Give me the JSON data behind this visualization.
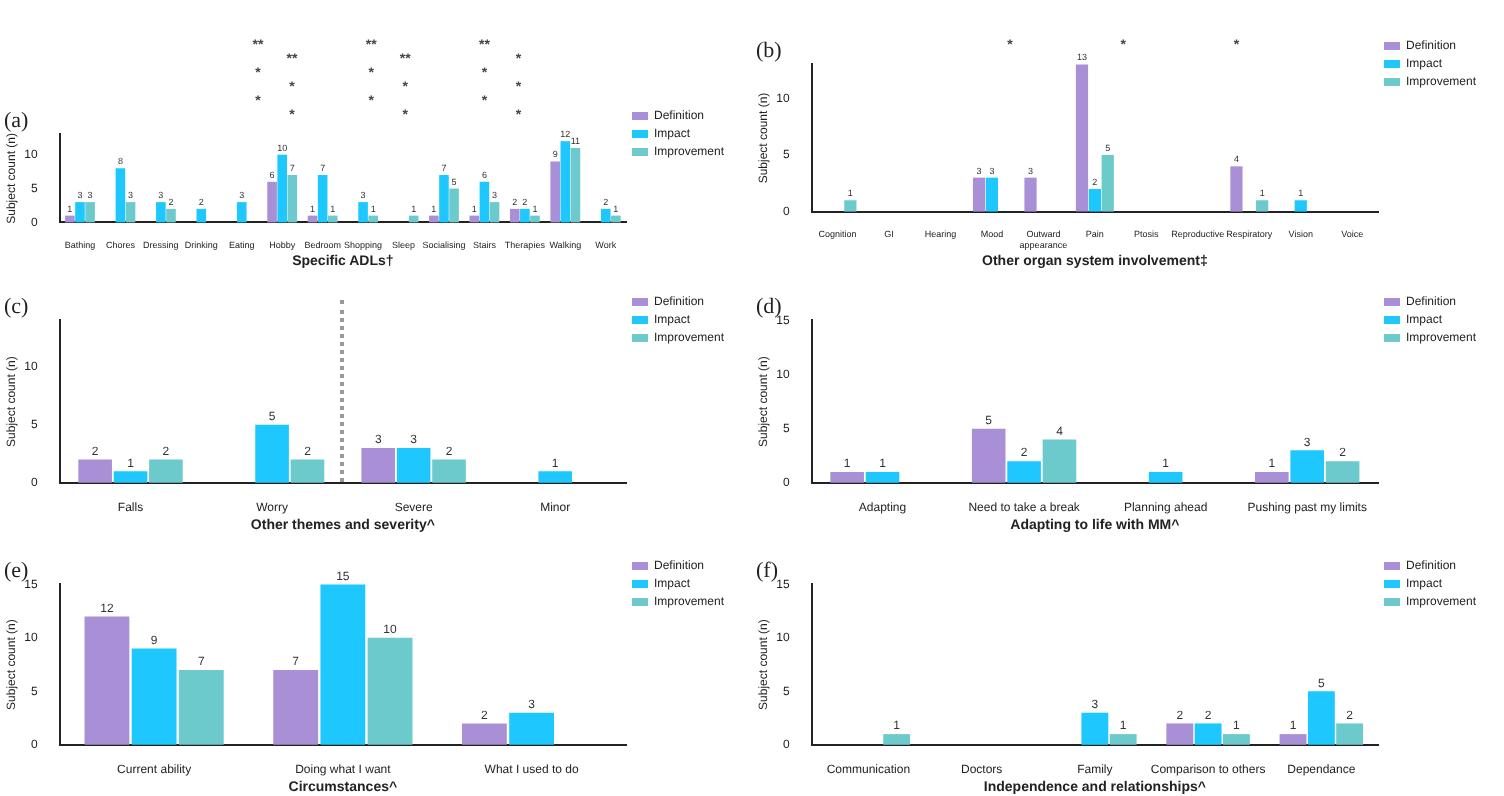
{
  "chart_data": [
    {
      "type": "bar",
      "title": "(a)",
      "xlabel": "Specific ADLs†",
      "ylabel": "Subject count (n)",
      "categories": [
        "Bathing",
        "Chores",
        "Dressing",
        "Drinking",
        "Eating",
        "Hobby",
        "Bedroom",
        "Shopping",
        "Sleep",
        "Socialising",
        "Stairs",
        "Therapies",
        "Walking",
        "Work"
      ],
      "series": [
        {
          "name": "Definition",
          "color": "#a98fd6",
          "values": [
            1,
            null,
            null,
            null,
            null,
            6,
            1,
            null,
            null,
            1,
            1,
            2,
            9,
            null
          ]
        },
        {
          "name": "Impact",
          "color": "#1ec8ff",
          "values": [
            3,
            8,
            3,
            2,
            3,
            10,
            7,
            3,
            null,
            7,
            6,
            2,
            12,
            2
          ]
        },
        {
          "name": "Improvement",
          "color": "#6cc9cc",
          "values": [
            3,
            3,
            2,
            null,
            null,
            7,
            1,
            1,
            1,
            5,
            3,
            1,
            11,
            1
          ]
        }
      ],
      "ylim": [
        0,
        13
      ],
      "yticks": [
        0,
        5,
        10
      ],
      "grid": false,
      "legend": "top right",
      "data_labels": true,
      "annotations": [
        "**",
        "**",
        "**",
        "**",
        "**",
        "*",
        "*",
        "*",
        "*",
        "*",
        "*",
        "*",
        "*",
        "*",
        "*",
        "*",
        "*",
        "*"
      ]
    },
    {
      "type": "bar",
      "title": "(b)",
      "xlabel": "Other organ system involvement‡",
      "ylabel": "Subject count (n)",
      "categories": [
        "Cognition",
        "GI",
        "Hearing",
        "Mood",
        "Outward appearance",
        "Pain",
        "Ptosis",
        "Reproductive",
        "Respiratory",
        "Vision",
        "Voice"
      ],
      "series": [
        {
          "name": "Definition",
          "color": "#a98fd6",
          "values": [
            null,
            null,
            null,
            3,
            3,
            13,
            null,
            null,
            4,
            null,
            null
          ]
        },
        {
          "name": "Impact",
          "color": "#1ec8ff",
          "values": [
            null,
            null,
            null,
            3,
            null,
            2,
            null,
            null,
            null,
            1,
            null
          ]
        },
        {
          "name": "Improvement",
          "color": "#6cc9cc",
          "values": [
            1,
            null,
            null,
            null,
            null,
            5,
            null,
            null,
            1,
            null,
            null
          ]
        }
      ],
      "ylim": [
        0,
        13
      ],
      "yticks": [
        0,
        5,
        10
      ],
      "grid": false,
      "legend": "top right",
      "data_labels": true,
      "annotations": [
        "*",
        "*",
        "*"
      ]
    },
    {
      "type": "bar",
      "title": "(c)",
      "xlabel": "Other themes and severity^",
      "ylabel": "Subject count (n)",
      "categories": [
        "Falls",
        "Worry",
        "Severe",
        "Minor"
      ],
      "series": [
        {
          "name": "Definition",
          "color": "#a98fd6",
          "values": [
            2,
            null,
            3,
            null
          ]
        },
        {
          "name": "Impact",
          "color": "#1ec8ff",
          "values": [
            1,
            5,
            3,
            1
          ]
        },
        {
          "name": "Improvement",
          "color": "#6cc9cc",
          "values": [
            2,
            2,
            2,
            null
          ]
        }
      ],
      "ylim": [
        0,
        14
      ],
      "yticks": [
        0,
        5,
        10
      ],
      "grid": false,
      "legend": "top right",
      "data_labels": true
    },
    {
      "type": "bar",
      "title": "(d)",
      "xlabel": "Adapting to life with MM^",
      "ylabel": "Subject count (n)",
      "categories": [
        "Adapting",
        "Need to take a break",
        "Planning ahead",
        "Pushing past my limits"
      ],
      "series": [
        {
          "name": "Definition",
          "color": "#a98fd6",
          "values": [
            1,
            5,
            null,
            1
          ]
        },
        {
          "name": "Impact",
          "color": "#1ec8ff",
          "values": [
            1,
            2,
            1,
            3
          ]
        },
        {
          "name": "Improvement",
          "color": "#6cc9cc",
          "values": [
            null,
            4,
            null,
            2
          ]
        }
      ],
      "ylim": [
        0,
        15
      ],
      "yticks": [
        0,
        5,
        10,
        15
      ],
      "grid": false,
      "legend": "top right",
      "data_labels": true
    },
    {
      "type": "bar",
      "title": "(e)",
      "xlabel": "Circumstances^",
      "ylabel": "Subject count (n)",
      "categories": [
        "Current ability",
        "Doing what I want",
        "What I used to do"
      ],
      "series": [
        {
          "name": "Definition",
          "color": "#a98fd6",
          "values": [
            12,
            7,
            2
          ]
        },
        {
          "name": "Impact",
          "color": "#1ec8ff",
          "values": [
            9,
            15,
            3
          ]
        },
        {
          "name": "Improvement",
          "color": "#6cc9cc",
          "values": [
            7,
            10,
            null
          ]
        }
      ],
      "ylim": [
        0,
        15
      ],
      "yticks": [
        0,
        5,
        10,
        15
      ],
      "grid": false,
      "legend": "top right",
      "data_labels": true
    },
    {
      "type": "bar",
      "title": "(f)",
      "xlabel": "Independence and relationships^",
      "ylabel": "Subject count (n)",
      "categories": [
        "Communication",
        "Doctors",
        "Family",
        "Comparison to others",
        "Dependance"
      ],
      "series": [
        {
          "name": "Definition",
          "color": "#a98fd6",
          "values": [
            null,
            null,
            null,
            2,
            1
          ]
        },
        {
          "name": "Impact",
          "color": "#1ec8ff",
          "values": [
            null,
            null,
            3,
            2,
            5
          ]
        },
        {
          "name": "Improvement",
          "color": "#6cc9cc",
          "values": [
            1,
            null,
            1,
            1,
            2
          ]
        }
      ],
      "ylim": [
        0,
        15
      ],
      "yticks": [
        0,
        5,
        10,
        15
      ],
      "grid": false,
      "legend": "top right",
      "data_labels": true
    }
  ]
}
